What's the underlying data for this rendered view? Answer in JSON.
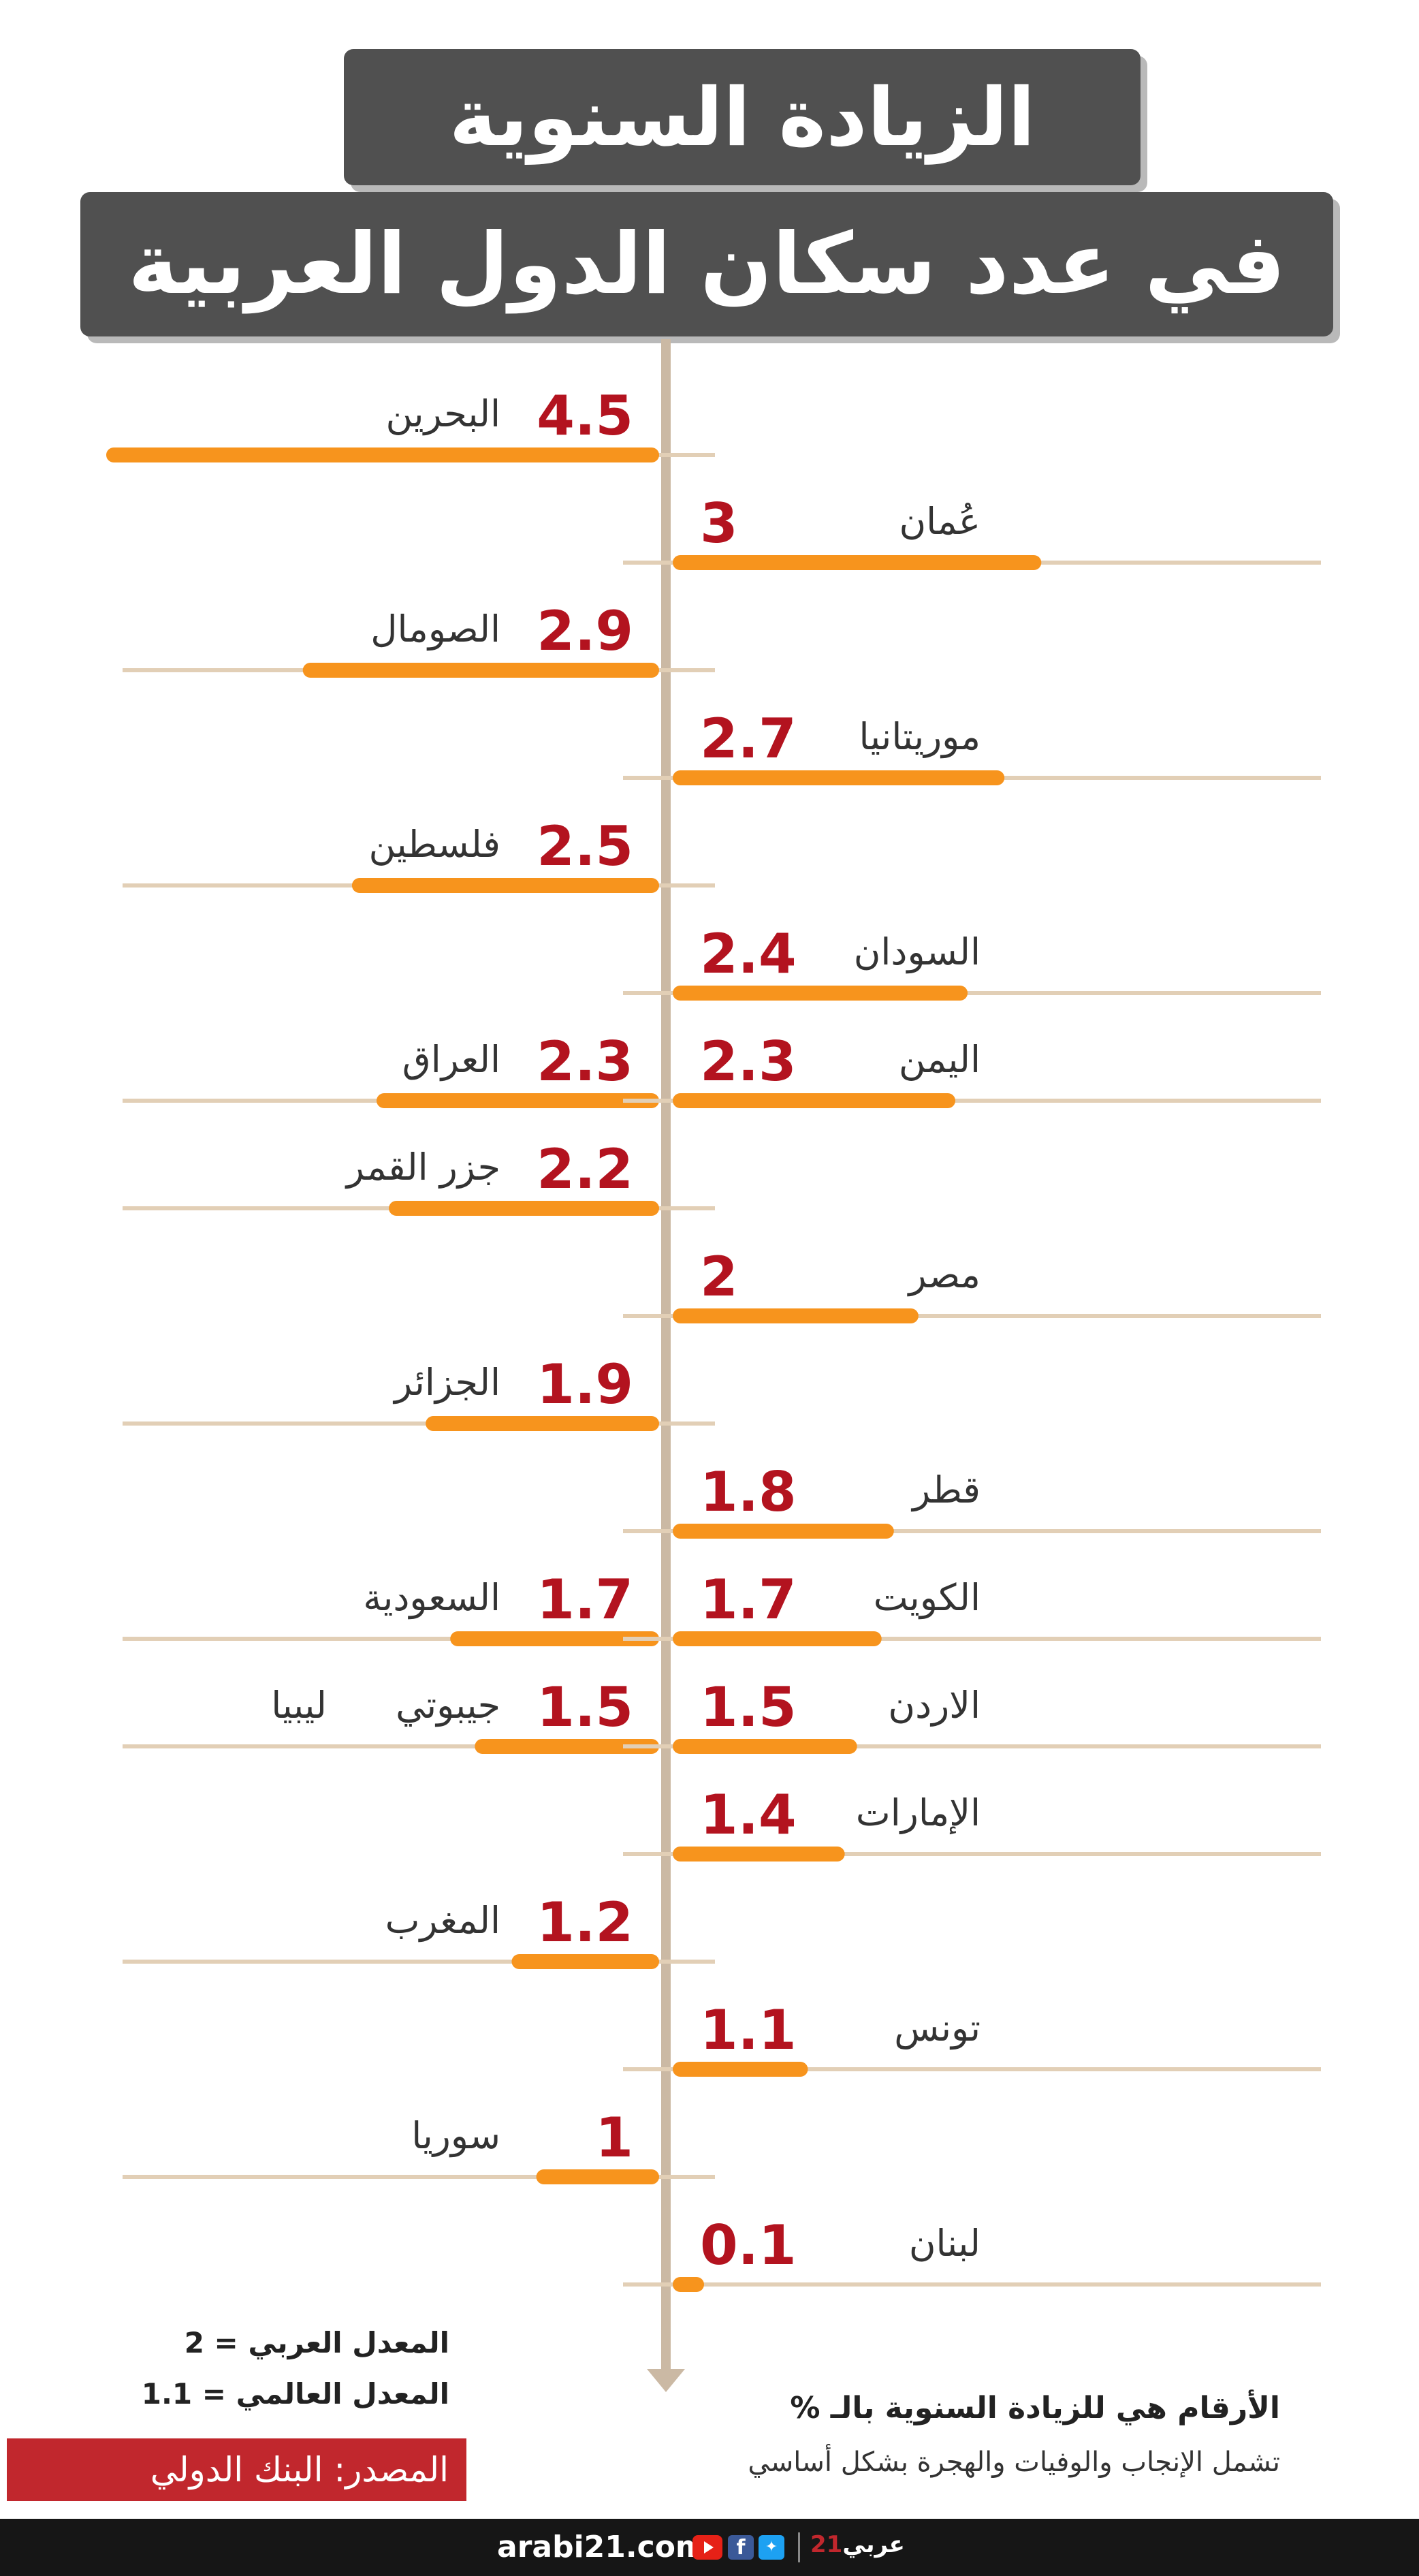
{
  "title": {
    "line1": "الزيادة السنوية",
    "line2": "في عدد سكان الدول العربية"
  },
  "chart_data": {
    "type": "bar",
    "unit": "%",
    "left": [
      {
        "country": "البحرين",
        "value": 4.5,
        "label": "4.5"
      },
      {
        "country": "الصومال",
        "value": 2.9,
        "label": "2.9"
      },
      {
        "country": "فلسطين",
        "value": 2.5,
        "label": "2.5"
      },
      {
        "country": "العراق",
        "value": 2.3,
        "label": "2.3"
      },
      {
        "country": "جزر القمر",
        "value": 2.2,
        "label": "2.2"
      },
      {
        "country": "الجزائر",
        "value": 1.9,
        "label": "1.9"
      },
      {
        "country": "السعودية",
        "value": 1.7,
        "label": "1.7"
      },
      {
        "country": "جيبوتي",
        "extra_country": "ليبيا",
        "value": 1.5,
        "label": "1.5"
      },
      {
        "country": "المغرب",
        "value": 1.2,
        "label": "1.2"
      },
      {
        "country": "سوريا",
        "value": 1.0,
        "label": "1"
      }
    ],
    "right": [
      {
        "country": "عُمان",
        "value": 3.0,
        "label": "3"
      },
      {
        "country": "موريتانيا",
        "value": 2.7,
        "label": "2.7"
      },
      {
        "country": "السودان",
        "value": 2.4,
        "label": "2.4"
      },
      {
        "country": "اليمن",
        "value": 2.3,
        "label": "2.3"
      },
      {
        "country": "مصر",
        "value": 2.0,
        "label": "2"
      },
      {
        "country": "قطر",
        "value": 1.8,
        "label": "1.8"
      },
      {
        "country": "الكويت",
        "value": 1.7,
        "label": "1.7"
      },
      {
        "country": "الاردن",
        "value": 1.5,
        "label": "1.5"
      },
      {
        "country": "الإمارات",
        "value": 1.4,
        "label": "1.4"
      },
      {
        "country": "تونس",
        "value": 1.1,
        "label": "1.1"
      },
      {
        "country": "لبنان",
        "value": 0.1,
        "label": "0.1"
      }
    ],
    "colors": {
      "bar": "#f7941d",
      "track": "#e2cfb6",
      "value": "#b3131f",
      "axis": "#cbb9a4",
      "text": "#333333"
    }
  },
  "notes": {
    "arab_avg": "المعدل العربي = 2",
    "world_avg": "المعدل العالمي = 1.1",
    "source": "المصدر: البنك الدولي",
    "line1": "الأرقام هي للزيادة السنوية بالـ %",
    "line2": "تشمل الإنجاب والوفيات والهجرة بشكل أساسي"
  },
  "footer": {
    "site": "arabi21.com",
    "logo": "عربي",
    "logo_mark": "21",
    "icons": [
      "youtube-icon",
      "facebook-icon",
      "twitter-icon"
    ]
  }
}
